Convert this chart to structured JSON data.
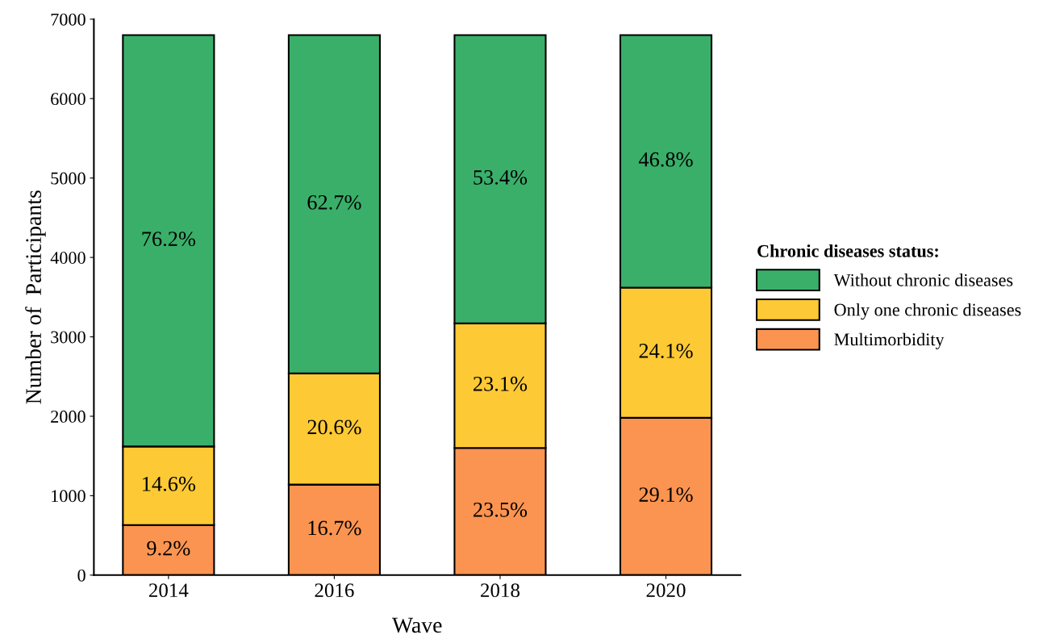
{
  "chart_data": {
    "type": "bar",
    "stacked": true,
    "xlabel": "Wave",
    "ylabel": "Number of  Participants",
    "legend_title": "Chronic diseases status:",
    "categories": [
      "2014",
      "2016",
      "2018",
      "2020"
    ],
    "series": [
      {
        "name": "Multimorbidity",
        "color": "#fb9450",
        "values": [
          630,
          1140,
          1600,
          1980
        ]
      },
      {
        "name": "Only one chronic diseases",
        "color": "#fdc935",
        "values": [
          990,
          1400,
          1570,
          1640
        ]
      },
      {
        "name": "Without chronic diseases",
        "color": "#3aaf6a",
        "values": [
          5180,
          4260,
          3630,
          3180
        ]
      }
    ],
    "annotations": [
      "9.2%",
      "14.6%",
      "76.2%",
      "16.7%",
      "20.6%",
      "62.7%",
      "23.5%",
      "23.1%",
      "53.4%",
      "29.1%",
      "24.1%",
      "46.8%"
    ],
    "ylim": [
      0,
      7000
    ],
    "yticks": [
      0,
      1000,
      2000,
      3000,
      4000,
      5000,
      6000,
      7000
    ],
    "grid": false,
    "legend": "right"
  }
}
